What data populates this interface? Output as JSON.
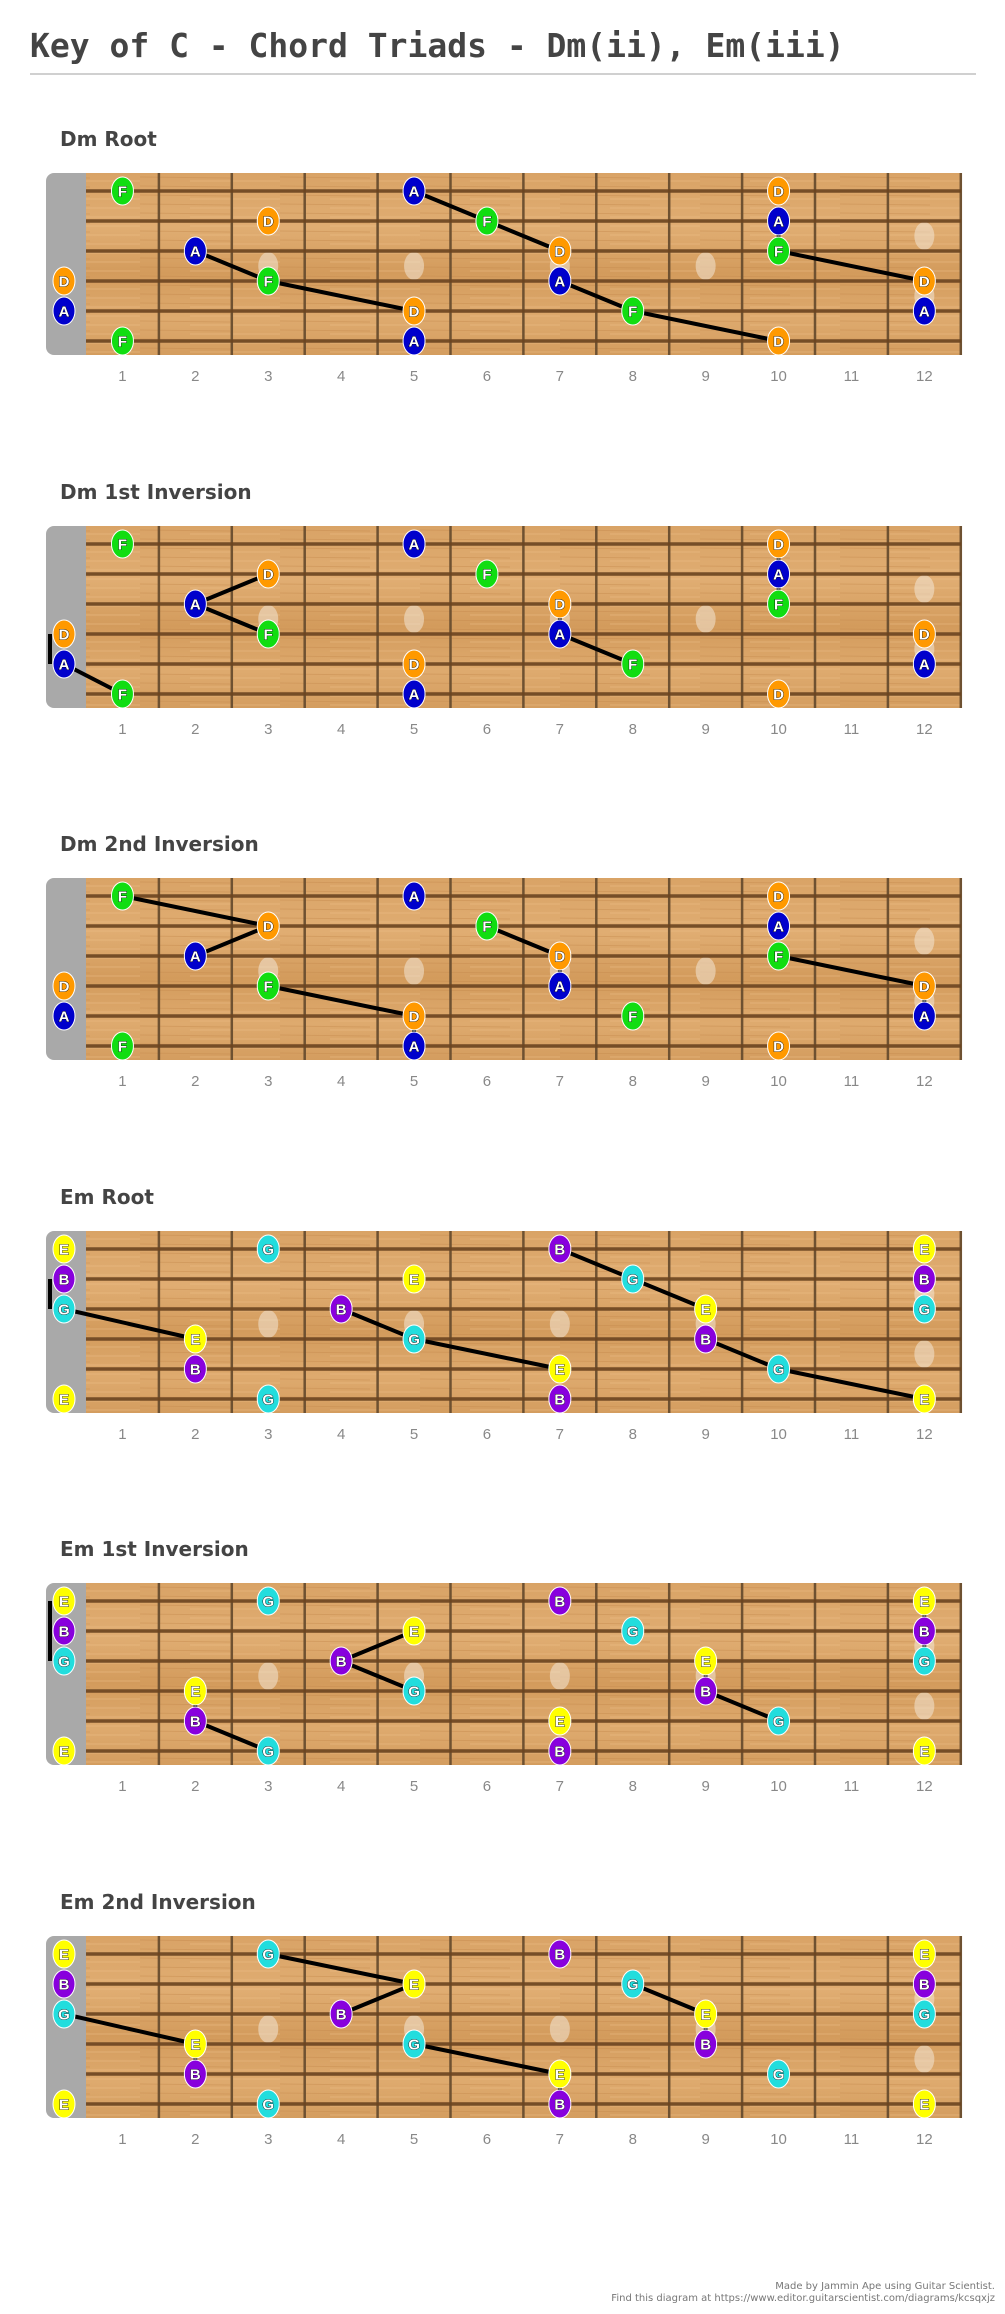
{
  "page_title": "Key of C - Chord Triads - Dm(ii), Em(iii)",
  "footer": {
    "line1": "Made by Jammin Ape using Guitar Scientist.",
    "line2": "Find this diagram at https://www.editor.guitarscientist.com/diagrams/kcsqxjz"
  },
  "fret_labels": [
    "1",
    "2",
    "3",
    "4",
    "5",
    "6",
    "7",
    "8",
    "9",
    "10",
    "11",
    "12"
  ],
  "note_colors": {
    "D": "#ff9900",
    "F": "#11dd11",
    "A": "#0000cc",
    "E": "#ffff00",
    "G": "#22dddd",
    "B": "#8800dd"
  },
  "inlays": [
    3,
    5,
    7,
    9,
    12
  ],
  "diagrams": [
    {
      "title": "Dm Root",
      "notes": [
        {
          "s": 1,
          "f": 1,
          "n": "F"
        },
        {
          "s": 1,
          "f": 5,
          "n": "A"
        },
        {
          "s": 1,
          "f": 10,
          "n": "D"
        },
        {
          "s": 2,
          "f": 3,
          "n": "D"
        },
        {
          "s": 2,
          "f": 6,
          "n": "F"
        },
        {
          "s": 2,
          "f": 10,
          "n": "A"
        },
        {
          "s": 3,
          "f": 2,
          "n": "A"
        },
        {
          "s": 3,
          "f": 7,
          "n": "D"
        },
        {
          "s": 3,
          "f": 10,
          "n": "F"
        },
        {
          "s": 4,
          "f": 0,
          "n": "D"
        },
        {
          "s": 4,
          "f": 3,
          "n": "F"
        },
        {
          "s": 4,
          "f": 7,
          "n": "A"
        },
        {
          "s": 4,
          "f": 12,
          "n": "D"
        },
        {
          "s": 5,
          "f": 0,
          "n": "A"
        },
        {
          "s": 5,
          "f": 5,
          "n": "D"
        },
        {
          "s": 5,
          "f": 8,
          "n": "F"
        },
        {
          "s": 5,
          "f": 12,
          "n": "A"
        },
        {
          "s": 6,
          "f": 1,
          "n": "F"
        },
        {
          "s": 6,
          "f": 5,
          "n": "A"
        },
        {
          "s": 6,
          "f": 10,
          "n": "D"
        }
      ],
      "shapes": [
        [
          [
            1,
            5
          ],
          [
            2,
            6
          ],
          [
            3,
            7
          ]
        ],
        [
          [
            3,
            2
          ],
          [
            4,
            3
          ],
          [
            5,
            5
          ]
        ],
        [
          [
            4,
            7
          ],
          [
            5,
            8
          ],
          [
            6,
            10
          ]
        ],
        [
          [
            2,
            10
          ],
          [
            3,
            10
          ],
          [
            4,
            12
          ]
        ]
      ]
    },
    {
      "title": "Dm 1st Inversion",
      "notes": [
        {
          "s": 1,
          "f": 1,
          "n": "F"
        },
        {
          "s": 1,
          "f": 5,
          "n": "A"
        },
        {
          "s": 1,
          "f": 10,
          "n": "D"
        },
        {
          "s": 2,
          "f": 3,
          "n": "D"
        },
        {
          "s": 2,
          "f": 6,
          "n": "F"
        },
        {
          "s": 2,
          "f": 10,
          "n": "A"
        },
        {
          "s": 3,
          "f": 2,
          "n": "A"
        },
        {
          "s": 3,
          "f": 7,
          "n": "D"
        },
        {
          "s": 3,
          "f": 10,
          "n": "F"
        },
        {
          "s": 4,
          "f": 0,
          "n": "D"
        },
        {
          "s": 4,
          "f": 3,
          "n": "F"
        },
        {
          "s": 4,
          "f": 7,
          "n": "A"
        },
        {
          "s": 4,
          "f": 12,
          "n": "D"
        },
        {
          "s": 5,
          "f": 0,
          "n": "A"
        },
        {
          "s": 5,
          "f": 5,
          "n": "D"
        },
        {
          "s": 5,
          "f": 8,
          "n": "F"
        },
        {
          "s": 5,
          "f": 12,
          "n": "A"
        },
        {
          "s": 6,
          "f": 1,
          "n": "F"
        },
        {
          "s": 6,
          "f": 5,
          "n": "A"
        },
        {
          "s": 6,
          "f": 10,
          "n": "D"
        }
      ],
      "shapes": [
        [
          [
            4,
            0
          ],
          [
            5,
            0
          ],
          [
            6,
            1
          ]
        ],
        [
          [
            2,
            3
          ],
          [
            3,
            2
          ],
          [
            4,
            3
          ]
        ],
        [
          [
            3,
            7
          ],
          [
            4,
            7
          ],
          [
            5,
            8
          ]
        ],
        [
          [
            1,
            10
          ],
          [
            2,
            10
          ],
          [
            3,
            10
          ]
        ]
      ]
    },
    {
      "title": "Dm 2nd Inversion",
      "notes": [
        {
          "s": 1,
          "f": 1,
          "n": "F"
        },
        {
          "s": 1,
          "f": 5,
          "n": "A"
        },
        {
          "s": 1,
          "f": 10,
          "n": "D"
        },
        {
          "s": 2,
          "f": 3,
          "n": "D"
        },
        {
          "s": 2,
          "f": 6,
          "n": "F"
        },
        {
          "s": 2,
          "f": 10,
          "n": "A"
        },
        {
          "s": 3,
          "f": 2,
          "n": "A"
        },
        {
          "s": 3,
          "f": 7,
          "n": "D"
        },
        {
          "s": 3,
          "f": 10,
          "n": "F"
        },
        {
          "s": 4,
          "f": 0,
          "n": "D"
        },
        {
          "s": 4,
          "f": 3,
          "n": "F"
        },
        {
          "s": 4,
          "f": 7,
          "n": "A"
        },
        {
          "s": 4,
          "f": 12,
          "n": "D"
        },
        {
          "s": 5,
          "f": 0,
          "n": "A"
        },
        {
          "s": 5,
          "f": 5,
          "n": "D"
        },
        {
          "s": 5,
          "f": 8,
          "n": "F"
        },
        {
          "s": 5,
          "f": 12,
          "n": "A"
        },
        {
          "s": 6,
          "f": 1,
          "n": "F"
        },
        {
          "s": 6,
          "f": 5,
          "n": "A"
        },
        {
          "s": 6,
          "f": 10,
          "n": "D"
        }
      ],
      "shapes": [
        [
          [
            1,
            1
          ],
          [
            2,
            3
          ],
          [
            3,
            2
          ]
        ],
        [
          [
            4,
            3
          ],
          [
            5,
            5
          ],
          [
            6,
            5
          ]
        ],
        [
          [
            2,
            6
          ],
          [
            3,
            7
          ],
          [
            4,
            7
          ]
        ],
        [
          [
            3,
            10
          ],
          [
            4,
            12
          ],
          [
            5,
            12
          ]
        ]
      ]
    },
    {
      "title": "Em Root",
      "notes": [
        {
          "s": 1,
          "f": 0,
          "n": "E"
        },
        {
          "s": 1,
          "f": 3,
          "n": "G"
        },
        {
          "s": 1,
          "f": 7,
          "n": "B"
        },
        {
          "s": 1,
          "f": 12,
          "n": "E"
        },
        {
          "s": 2,
          "f": 0,
          "n": "B"
        },
        {
          "s": 2,
          "f": 5,
          "n": "E"
        },
        {
          "s": 2,
          "f": 8,
          "n": "G"
        },
        {
          "s": 2,
          "f": 12,
          "n": "B"
        },
        {
          "s": 3,
          "f": 0,
          "n": "G"
        },
        {
          "s": 3,
          "f": 4,
          "n": "B"
        },
        {
          "s": 3,
          "f": 9,
          "n": "E"
        },
        {
          "s": 3,
          "f": 12,
          "n": "G"
        },
        {
          "s": 4,
          "f": 2,
          "n": "E"
        },
        {
          "s": 4,
          "f": 5,
          "n": "G"
        },
        {
          "s": 4,
          "f": 9,
          "n": "B"
        },
        {
          "s": 5,
          "f": 2,
          "n": "B"
        },
        {
          "s": 5,
          "f": 7,
          "n": "E"
        },
        {
          "s": 5,
          "f": 10,
          "n": "G"
        },
        {
          "s": 6,
          "f": 0,
          "n": "E"
        },
        {
          "s": 6,
          "f": 3,
          "n": "G"
        },
        {
          "s": 6,
          "f": 7,
          "n": "B"
        },
        {
          "s": 6,
          "f": 12,
          "n": "E"
        }
      ],
      "shapes": [
        [
          [
            2,
            0
          ],
          [
            3,
            0
          ],
          [
            4,
            2
          ]
        ],
        [
          [
            3,
            4
          ],
          [
            4,
            5
          ],
          [
            5,
            7
          ]
        ],
        [
          [
            1,
            7
          ],
          [
            2,
            8
          ],
          [
            3,
            9
          ]
        ],
        [
          [
            4,
            9
          ],
          [
            5,
            10
          ],
          [
            6,
            12
          ]
        ]
      ]
    },
    {
      "title": "Em 1st Inversion",
      "notes": [
        {
          "s": 1,
          "f": 0,
          "n": "E"
        },
        {
          "s": 1,
          "f": 3,
          "n": "G"
        },
        {
          "s": 1,
          "f": 7,
          "n": "B"
        },
        {
          "s": 1,
          "f": 12,
          "n": "E"
        },
        {
          "s": 2,
          "f": 0,
          "n": "B"
        },
        {
          "s": 2,
          "f": 5,
          "n": "E"
        },
        {
          "s": 2,
          "f": 8,
          "n": "G"
        },
        {
          "s": 2,
          "f": 12,
          "n": "B"
        },
        {
          "s": 3,
          "f": 0,
          "n": "G"
        },
        {
          "s": 3,
          "f": 4,
          "n": "B"
        },
        {
          "s": 3,
          "f": 9,
          "n": "E"
        },
        {
          "s": 3,
          "f": 12,
          "n": "G"
        },
        {
          "s": 4,
          "f": 2,
          "n": "E"
        },
        {
          "s": 4,
          "f": 5,
          "n": "G"
        },
        {
          "s": 4,
          "f": 9,
          "n": "B"
        },
        {
          "s": 5,
          "f": 2,
          "n": "B"
        },
        {
          "s": 5,
          "f": 7,
          "n": "E"
        },
        {
          "s": 5,
          "f": 10,
          "n": "G"
        },
        {
          "s": 6,
          "f": 0,
          "n": "E"
        },
        {
          "s": 6,
          "f": 3,
          "n": "G"
        },
        {
          "s": 6,
          "f": 7,
          "n": "B"
        },
        {
          "s": 6,
          "f": 12,
          "n": "E"
        }
      ],
      "shapes": [
        [
          [
            1,
            0
          ],
          [
            2,
            0
          ],
          [
            3,
            0
          ]
        ],
        [
          [
            2,
            5
          ],
          [
            3,
            4
          ],
          [
            4,
            5
          ]
        ],
        [
          [
            4,
            2
          ],
          [
            5,
            2
          ],
          [
            6,
            3
          ]
        ],
        [
          [
            3,
            9
          ],
          [
            4,
            9
          ],
          [
            5,
            10
          ]
        ],
        [
          [
            1,
            12
          ],
          [
            2,
            12
          ],
          [
            3,
            12
          ]
        ]
      ]
    },
    {
      "title": "Em 2nd Inversion",
      "notes": [
        {
          "s": 1,
          "f": 0,
          "n": "E"
        },
        {
          "s": 1,
          "f": 3,
          "n": "G"
        },
        {
          "s": 1,
          "f": 7,
          "n": "B"
        },
        {
          "s": 1,
          "f": 12,
          "n": "E"
        },
        {
          "s": 2,
          "f": 0,
          "n": "B"
        },
        {
          "s": 2,
          "f": 5,
          "n": "E"
        },
        {
          "s": 2,
          "f": 8,
          "n": "G"
        },
        {
          "s": 2,
          "f": 12,
          "n": "B"
        },
        {
          "s": 3,
          "f": 0,
          "n": "G"
        },
        {
          "s": 3,
          "f": 4,
          "n": "B"
        },
        {
          "s": 3,
          "f": 9,
          "n": "E"
        },
        {
          "s": 3,
          "f": 12,
          "n": "G"
        },
        {
          "s": 4,
          "f": 2,
          "n": "E"
        },
        {
          "s": 4,
          "f": 5,
          "n": "G"
        },
        {
          "s": 4,
          "f": 9,
          "n": "B"
        },
        {
          "s": 5,
          "f": 2,
          "n": "B"
        },
        {
          "s": 5,
          "f": 7,
          "n": "E"
        },
        {
          "s": 5,
          "f": 10,
          "n": "G"
        },
        {
          "s": 6,
          "f": 0,
          "n": "E"
        },
        {
          "s": 6,
          "f": 3,
          "n": "G"
        },
        {
          "s": 6,
          "f": 7,
          "n": "B"
        },
        {
          "s": 6,
          "f": 12,
          "n": "E"
        }
      ],
      "shapes": [
        [
          [
            1,
            3
          ],
          [
            2,
            5
          ],
          [
            3,
            4
          ]
        ],
        [
          [
            3,
            0
          ],
          [
            4,
            2
          ],
          [
            5,
            2
          ]
        ],
        [
          [
            4,
            5
          ],
          [
            5,
            7
          ],
          [
            6,
            7
          ]
        ],
        [
          [
            2,
            8
          ],
          [
            3,
            9
          ],
          [
            4,
            9
          ]
        ]
      ]
    }
  ]
}
